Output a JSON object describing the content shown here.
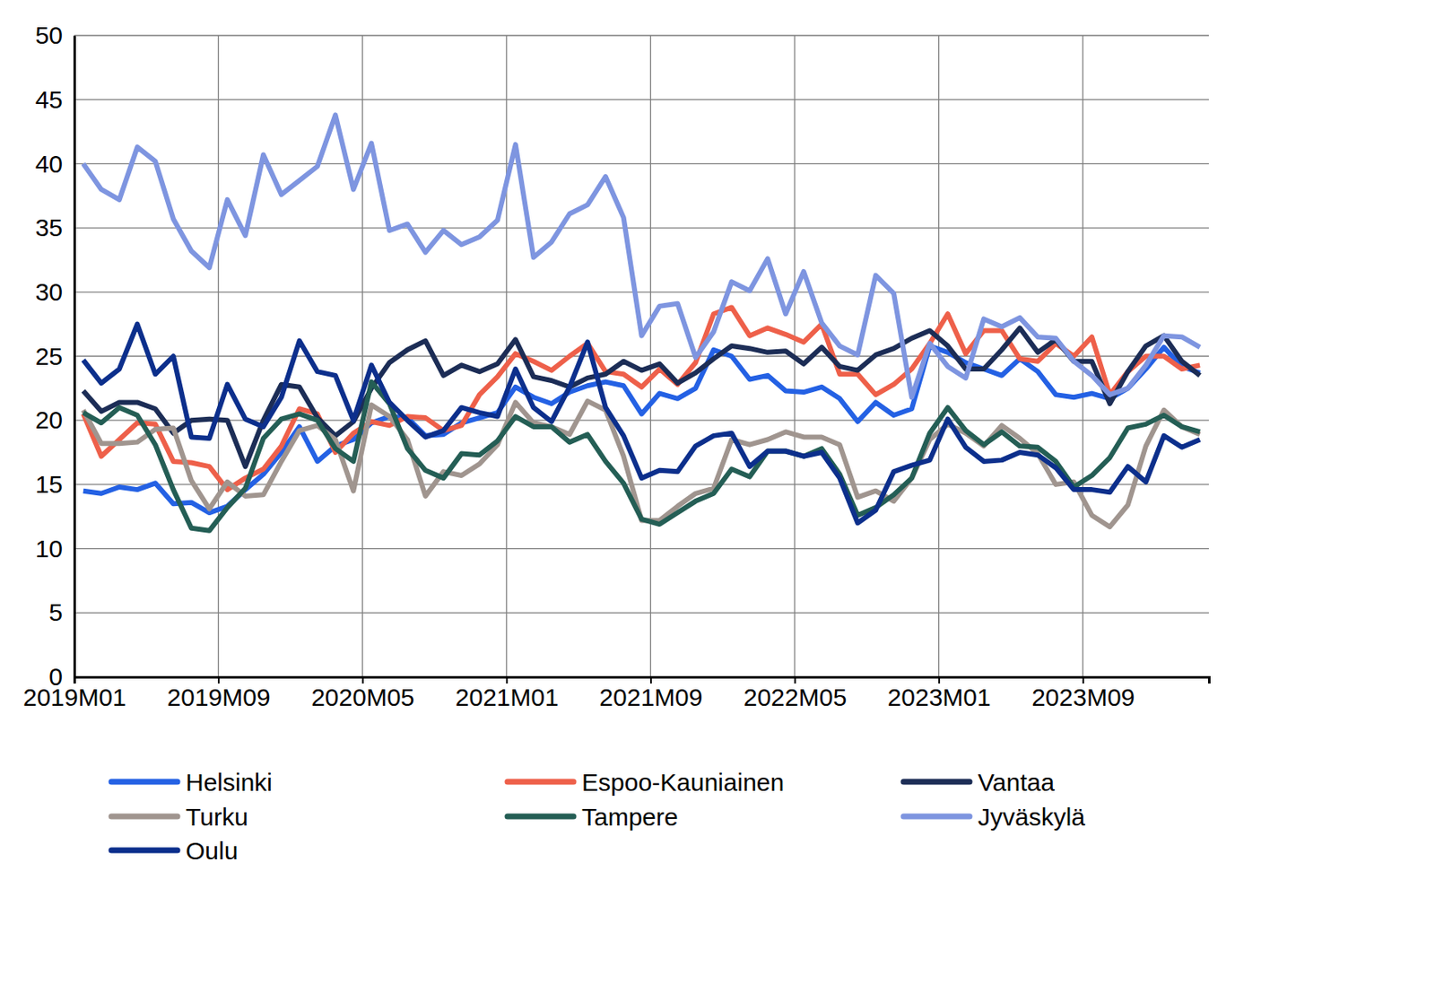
{
  "chart_data": {
    "type": "line",
    "categories": [
      "2019M01",
      null,
      null,
      null,
      null,
      null,
      null,
      null,
      "2019M09",
      null,
      null,
      null,
      null,
      null,
      null,
      null,
      "2020M05",
      null,
      null,
      null,
      null,
      null,
      null,
      null,
      "2021M01",
      null,
      null,
      null,
      null,
      null,
      null,
      null,
      "2021M09",
      null,
      null,
      null,
      null,
      null,
      null,
      null,
      "2022M05",
      null,
      null,
      null,
      null,
      null,
      null,
      null,
      "2023M01",
      null,
      null,
      null,
      null,
      null,
      null,
      null,
      "2023M09",
      null,
      null,
      null,
      null,
      null,
      null
    ],
    "ylim": [
      0,
      50
    ],
    "yticks": [
      0,
      5,
      10,
      15,
      20,
      25,
      30,
      35,
      40,
      45,
      50
    ],
    "grid": true,
    "legend": "bottom",
    "series": [
      {
        "name": "Helsinki",
        "color": "#2461e4",
        "values": [
          14.5,
          14.3,
          14.8,
          14.6,
          15.1,
          13.5,
          13.6,
          12.8,
          13.3,
          14.6,
          15.8,
          17.5,
          19.5,
          16.8,
          18.0,
          18.5,
          19.8,
          20.3,
          20.2,
          18.8,
          18.9,
          19.8,
          20.2,
          20.6,
          22.6,
          21.8,
          21.3,
          22.2,
          22.7,
          23.0,
          22.7,
          20.5,
          22.1,
          21.7,
          22.5,
          25.5,
          25.0,
          23.2,
          23.5,
          22.3,
          22.2,
          22.6,
          21.7,
          19.9,
          21.4,
          20.4,
          20.9,
          25.8,
          25.3,
          24.5,
          24.0,
          23.5,
          24.8,
          23.8,
          22.0,
          21.8,
          22.1,
          21.7,
          22.5,
          24.0,
          25.7,
          24.2,
          23.7
        ]
      },
      {
        "name": "Espoo-Kauniainen",
        "color": "#ee604a",
        "values": [
          20.5,
          17.2,
          18.5,
          19.8,
          19.7,
          16.8,
          16.7,
          16.4,
          14.6,
          15.5,
          16.2,
          18.0,
          20.9,
          20.5,
          17.5,
          19.0,
          19.9,
          19.6,
          20.3,
          20.2,
          19.2,
          19.6,
          22.0,
          23.4,
          25.2,
          24.6,
          23.9,
          25.0,
          26.0,
          23.8,
          23.6,
          22.6,
          24.0,
          22.8,
          24.5,
          28.3,
          28.8,
          26.6,
          27.2,
          26.7,
          26.1,
          27.5,
          23.6,
          23.6,
          22.0,
          22.8,
          24.0,
          26.0,
          28.3,
          25.2,
          27.0,
          27.0,
          24.8,
          24.6,
          26.0,
          25.0,
          26.5,
          22.0,
          23.8,
          25.0,
          25.0,
          24.0,
          24.3
        ]
      },
      {
        "name": "Vantaa",
        "color": "#1c2d56",
        "values": [
          22.3,
          20.7,
          21.4,
          21.4,
          20.9,
          19.0,
          20.0,
          20.1,
          20.0,
          16.4,
          20.0,
          22.8,
          22.6,
          20.2,
          18.8,
          19.9,
          22.5,
          24.5,
          25.5,
          26.2,
          23.5,
          24.3,
          23.8,
          24.4,
          26.3,
          23.4,
          23.1,
          22.6,
          23.3,
          23.6,
          24.6,
          23.9,
          24.4,
          22.9,
          23.7,
          24.8,
          25.8,
          25.6,
          25.3,
          25.4,
          24.4,
          25.7,
          24.2,
          23.9,
          25.1,
          25.6,
          26.4,
          27.0,
          25.8,
          24.0,
          24.0,
          25.5,
          27.2,
          25.3,
          26.3,
          24.6,
          24.6,
          21.3,
          23.8,
          25.8,
          26.6,
          24.6,
          23.5
        ]
      },
      {
        "name": "Turku",
        "color": "#a0958f",
        "values": [
          20.8,
          18.2,
          18.2,
          18.3,
          19.3,
          19.4,
          15.3,
          13.1,
          15.2,
          14.1,
          14.2,
          16.8,
          19.2,
          19.6,
          18.5,
          14.5,
          21.2,
          20.3,
          18.5,
          14.1,
          16.0,
          15.7,
          16.6,
          18.1,
          21.4,
          19.8,
          19.5,
          18.9,
          21.5,
          20.8,
          17.2,
          12.2,
          12.2,
          13.3,
          14.3,
          14.7,
          18.5,
          18.1,
          18.5,
          19.1,
          18.7,
          18.7,
          18.1,
          14.0,
          14.5,
          13.7,
          15.5,
          18.5,
          19.7,
          19.0,
          18.0,
          19.6,
          18.6,
          17.4,
          15.0,
          15.2,
          12.6,
          11.7,
          13.4,
          18.0,
          20.8,
          19.5,
          18.9
        ]
      },
      {
        "name": "Tampere",
        "color": "#245e55",
        "values": [
          20.6,
          19.8,
          21.0,
          20.4,
          18.1,
          14.6,
          11.6,
          11.4,
          13.2,
          14.7,
          18.6,
          20.1,
          20.5,
          20.0,
          17.8,
          16.8,
          23.0,
          21.3,
          17.8,
          16.1,
          15.5,
          17.4,
          17.3,
          18.4,
          20.3,
          19.5,
          19.5,
          18.3,
          18.9,
          16.8,
          15.1,
          12.3,
          11.9,
          12.8,
          13.7,
          14.3,
          16.2,
          15.6,
          17.6,
          17.6,
          17.2,
          17.8,
          15.8,
          12.6,
          13.2,
          14.2,
          15.5,
          19.0,
          21.0,
          19.2,
          18.1,
          19.1,
          18.0,
          17.9,
          16.8,
          14.8,
          15.7,
          17.1,
          19.4,
          19.7,
          20.4,
          19.5,
          19.1
        ]
      },
      {
        "name": "Jyväskylä",
        "color": "#7e95e0",
        "values": [
          40.0,
          38.0,
          37.2,
          41.3,
          40.2,
          35.7,
          33.2,
          31.9,
          37.2,
          34.4,
          40.7,
          37.6,
          38.7,
          39.8,
          43.8,
          38.0,
          41.6,
          34.8,
          35.3,
          33.1,
          34.8,
          33.7,
          34.3,
          35.6,
          41.5,
          32.7,
          33.9,
          36.1,
          36.8,
          39.0,
          35.8,
          26.6,
          28.9,
          29.1,
          24.9,
          26.9,
          30.8,
          30.1,
          32.6,
          28.3,
          31.6,
          27.6,
          25.8,
          25.1,
          31.3,
          29.9,
          21.8,
          26.0,
          24.2,
          23.3,
          27.9,
          27.3,
          28.0,
          26.5,
          26.4,
          24.6,
          23.5,
          22.0,
          22.5,
          24.3,
          26.6,
          26.5,
          25.7
        ]
      },
      {
        "name": "Oulu",
        "color": "#0c2f8c",
        "values": [
          24.7,
          22.9,
          24.0,
          27.5,
          23.6,
          25.0,
          18.7,
          18.6,
          22.8,
          20.1,
          19.5,
          21.8,
          26.2,
          23.8,
          23.5,
          20.0,
          24.3,
          21.4,
          20.0,
          18.7,
          19.2,
          21.0,
          20.6,
          20.3,
          24.0,
          21.0,
          19.9,
          22.6,
          26.1,
          21.0,
          18.8,
          15.5,
          16.1,
          16.0,
          18.0,
          18.8,
          19.0,
          16.4,
          17.6,
          17.6,
          17.2,
          17.5,
          15.5,
          12.0,
          13.0,
          16.0,
          16.5,
          16.9,
          20.1,
          17.9,
          16.8,
          16.9,
          17.5,
          17.3,
          16.3,
          14.6,
          14.6,
          14.4,
          16.4,
          15.2,
          18.8,
          17.9,
          18.5
        ]
      }
    ]
  }
}
